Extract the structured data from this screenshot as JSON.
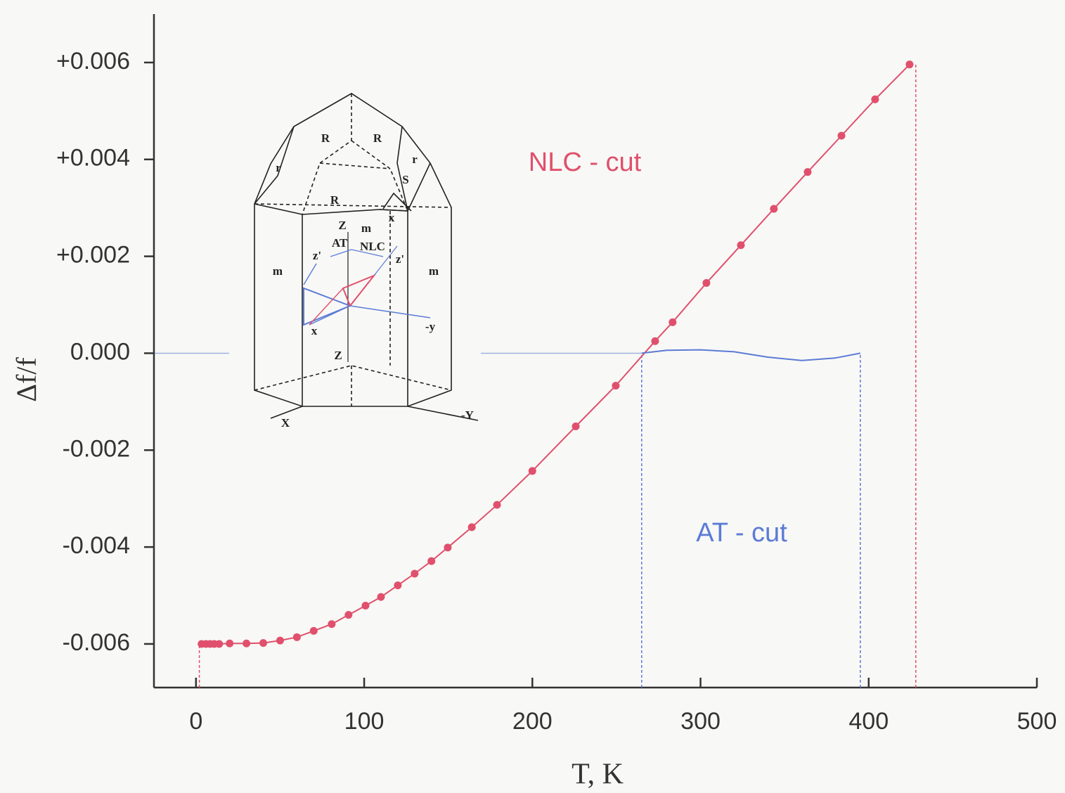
{
  "chart_data": {
    "type": "line",
    "x_label": "T, K",
    "y_label": "Δf/f",
    "xlim": [
      -25,
      500
    ],
    "ylim": [
      -0.0069,
      0.007
    ],
    "xticks": [
      0,
      100,
      200,
      300,
      400,
      500
    ],
    "yticks": [
      {
        "value": -0.006,
        "label": "-0.006"
      },
      {
        "value": -0.004,
        "label": "-0.004"
      },
      {
        "value": -0.002,
        "label": "-0.002"
      },
      {
        "value": 0,
        "label": "0.000"
      },
      {
        "value": 0.002,
        "label": "+0.002"
      },
      {
        "value": 0.004,
        "label": "+0.004"
      },
      {
        "value": 0.006,
        "label": "+0.006"
      }
    ],
    "series": [
      {
        "name": "NLC - cut",
        "color": "#e0506c",
        "markers": true,
        "x": [
          3.3,
          5.9,
          8.4,
          10.9,
          13.8,
          20,
          30,
          40,
          50,
          60,
          70,
          80.7,
          90.7,
          100.8,
          110,
          120,
          130,
          140,
          149.7,
          164,
          179,
          200,
          225.8,
          249.6,
          273,
          283.4,
          303.5,
          324,
          343.6,
          363.7,
          383.8,
          403.8,
          424.3
        ],
        "values": [
          -0.006,
          -0.006,
          -0.006,
          -0.006,
          -0.006,
          -0.00599,
          -0.00599,
          -0.00598,
          -0.00593,
          -0.00586,
          -0.00573,
          -0.00559,
          -0.0054,
          -0.00521,
          -0.00503,
          -0.00479,
          -0.00455,
          -0.00429,
          -0.00401,
          -0.00359,
          -0.00313,
          -0.00243,
          -0.00151,
          -0.00067,
          0.00025,
          0.00064,
          0.00145,
          0.00223,
          0.00298,
          0.00374,
          0.00449,
          0.00524,
          0.00596
        ]
      },
      {
        "name": "AT - cut",
        "color": "#5b7bd5",
        "markers": false,
        "x": [
          265,
          280,
          300,
          320,
          340,
          360,
          380,
          395
        ],
        "values": [
          0,
          6e-05,
          7e-05,
          3e-05,
          -8e-05,
          -0.00015,
          -0.0001,
          0
        ]
      }
    ],
    "ref_lines": [
      {
        "x": 2,
        "y": -0.006,
        "color": "#e0506c"
      },
      {
        "x": 265,
        "y": 0,
        "color": "#5b7bd5"
      },
      {
        "x": 395,
        "y": 0,
        "color": "#5b7bd5"
      },
      {
        "x": 428,
        "y": 0.00596,
        "color": "#e0506c"
      }
    ],
    "zero_line_color": "#9fb2e0",
    "inset_labels": [
      "R",
      "R",
      "r",
      "r",
      "S",
      "R",
      "x",
      "Z",
      "m",
      "AT",
      "NLC",
      "z'",
      "z'",
      "m",
      "m",
      "x",
      "-y",
      "Z",
      "X",
      "-Y"
    ]
  }
}
